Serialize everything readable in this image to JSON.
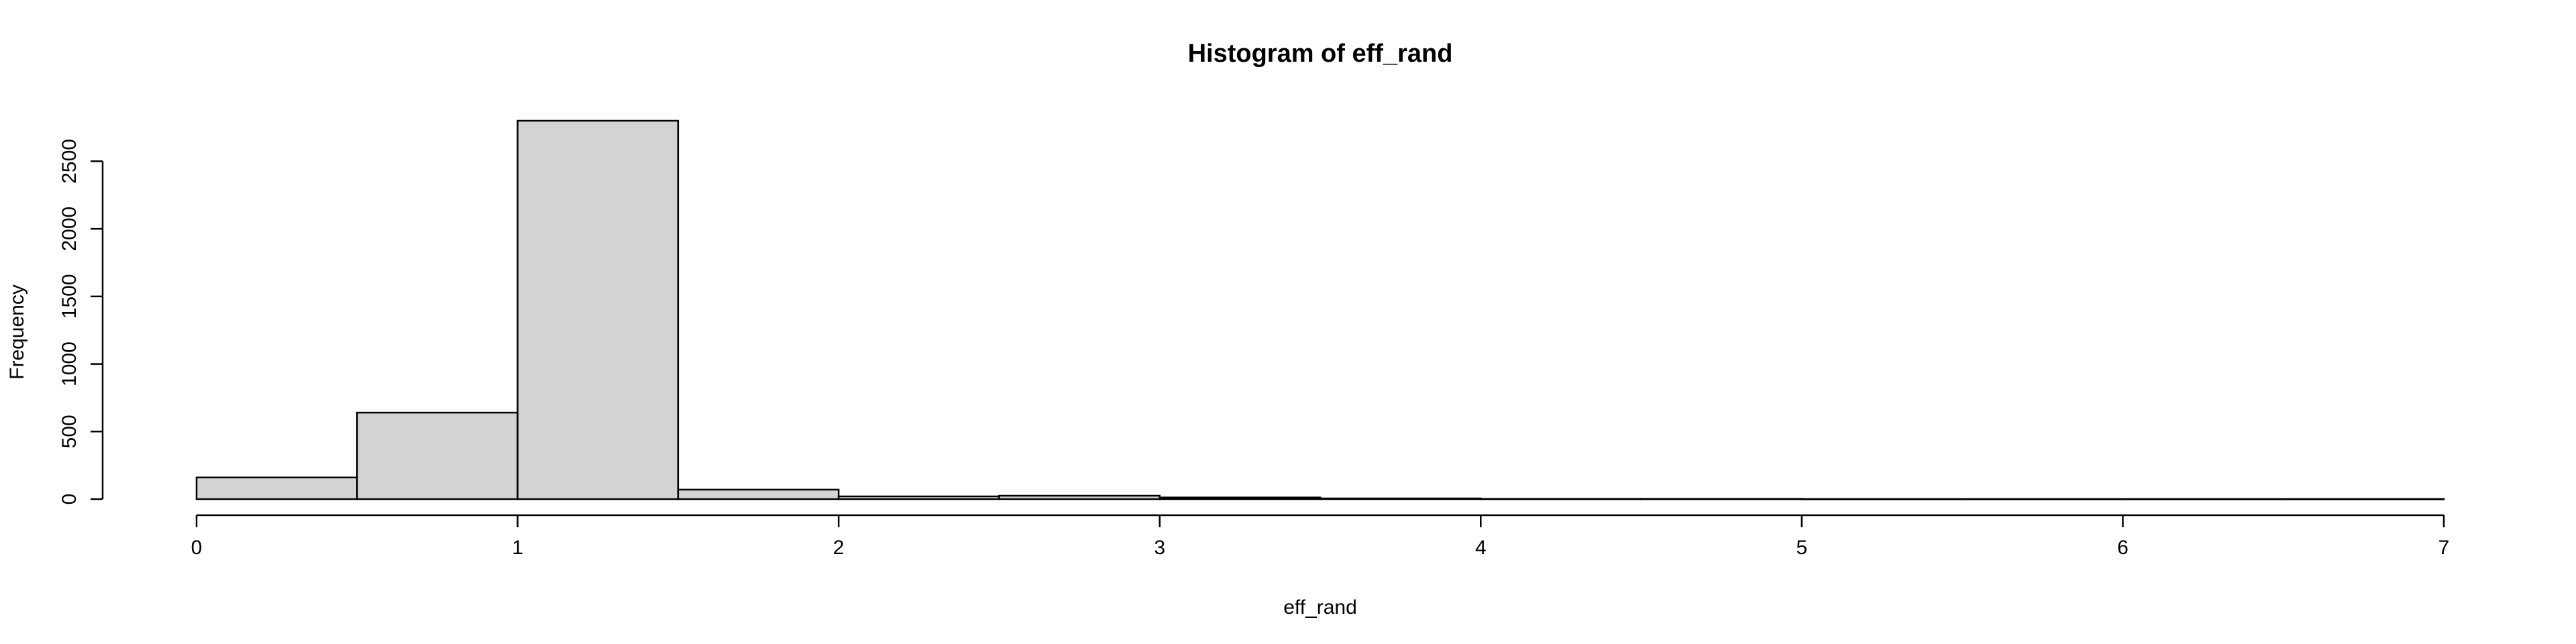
{
  "chart_data": {
    "type": "bar",
    "title": "Histogram of eff_rand",
    "xlabel": "eff_rand",
    "ylabel": "Frequency",
    "bin_edges": [
      0,
      0.5,
      1,
      1.5,
      2,
      2.5,
      3,
      3.5,
      4,
      4.5,
      5,
      5.5,
      6,
      6.5,
      7
    ],
    "values": [
      160,
      640,
      2800,
      70,
      20,
      25,
      12,
      5,
      2,
      2,
      1,
      1,
      1,
      1
    ],
    "xlim": [
      0,
      7
    ],
    "ylim": [
      0,
      2800
    ],
    "x_ticks": [
      0,
      1,
      2,
      3,
      4,
      5,
      6,
      7
    ],
    "y_ticks": [
      0,
      500,
      1000,
      1500,
      2000,
      2500
    ],
    "colors": {
      "bar_fill": "#d3d3d3",
      "bar_stroke": "#000000"
    },
    "grid": false,
    "legend": "none"
  }
}
